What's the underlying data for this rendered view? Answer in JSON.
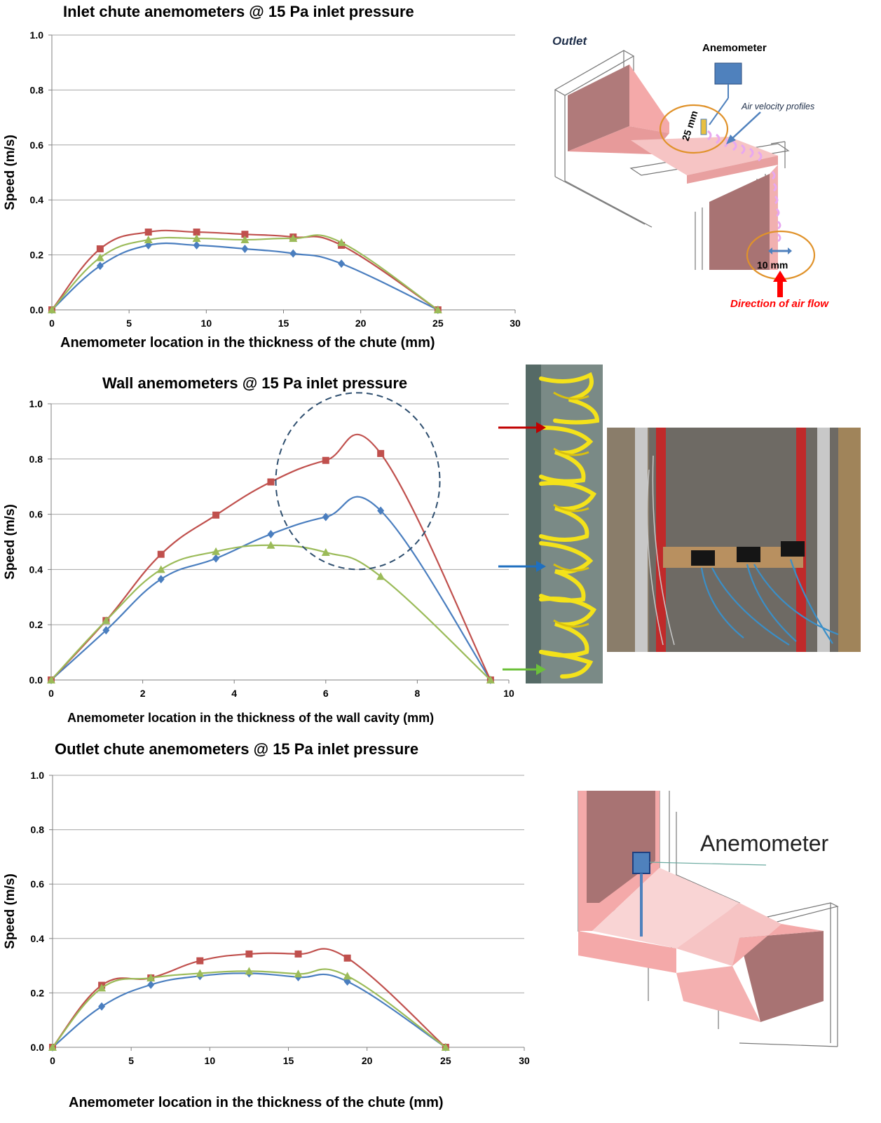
{
  "colors": {
    "blue": "#4a7ebf",
    "red": "#c0504d",
    "green": "#9bbb59",
    "grid": "#a6a6a6"
  },
  "charts": [
    {
      "title": "Inlet chute anemometers @ 15 Pa inlet pressure",
      "xlabel": "Anemometer location in the thickness of the chute (mm)",
      "ylabel": "Speed (m/s)"
    },
    {
      "title": "Wall anemometers @ 15 Pa inlet pressure",
      "xlabel": "Anemometer location in the thickness of the wall cavity (mm)",
      "ylabel": "Speed (m/s)"
    },
    {
      "title": "Outlet chute anemometers @ 15 Pa inlet pressure",
      "xlabel": "Anemometer location in the thickness of the chute (mm)",
      "ylabel": "Speed (m/s)"
    }
  ],
  "chart_data": [
    {
      "type": "line",
      "title": "Inlet chute anemometers @ 15 Pa inlet pressure",
      "xlabel": "Anemometer location in the thickness of the chute (mm)",
      "ylabel": "Speed (m/s)",
      "xlim": [
        0,
        30
      ],
      "ylim": [
        0,
        1.0
      ],
      "xticks": [
        "0",
        "5",
        "10",
        "15",
        "20",
        "25",
        "30"
      ],
      "yticks": [
        "0.0",
        "0.2",
        "0.4",
        "0.6",
        "0.8",
        "1.0"
      ],
      "grid": true,
      "legend": "none",
      "series": [
        {
          "color": "#4a7ebf",
          "marker": "diamond",
          "x": [
            0,
            3.125,
            6.25,
            9.375,
            12.5,
            15.625,
            18.75,
            25
          ],
          "y": [
            0,
            0.16,
            0.235,
            0.235,
            0.222,
            0.205,
            0.168,
            0
          ]
        },
        {
          "color": "#c0504d",
          "marker": "square",
          "x": [
            0,
            3.125,
            6.25,
            9.375,
            12.5,
            15.625,
            18.75,
            25
          ],
          "y": [
            0,
            0.222,
            0.283,
            0.283,
            0.275,
            0.265,
            0.235,
            0
          ]
        },
        {
          "color": "#9bbb59",
          "marker": "triangle",
          "x": [
            0,
            3.125,
            6.25,
            9.375,
            12.5,
            15.625,
            18.75,
            25
          ],
          "y": [
            0,
            0.19,
            0.255,
            0.26,
            0.255,
            0.26,
            0.245,
            0
          ]
        }
      ]
    },
    {
      "type": "line",
      "title": "Wall anemometers @ 15 Pa inlet pressure",
      "xlabel": "Anemometer location in the thickness of the wall cavity (mm)",
      "ylabel": "Speed (m/s)",
      "xlim": [
        0,
        10
      ],
      "ylim": [
        0,
        1.0
      ],
      "xticks": [
        "0",
        "2",
        "4",
        "6",
        "8",
        "10"
      ],
      "yticks": [
        "0.0",
        "0.2",
        "0.4",
        "0.6",
        "0.8",
        "1.0"
      ],
      "grid": true,
      "legend": "none",
      "series": [
        {
          "color": "#4a7ebf",
          "marker": "diamond",
          "x": [
            0,
            1.2,
            2.4,
            3.6,
            4.8,
            6.0,
            7.2,
            9.6
          ],
          "y": [
            0,
            0.18,
            0.365,
            0.44,
            0.528,
            0.59,
            0.613,
            0
          ]
        },
        {
          "color": "#c0504d",
          "marker": "square",
          "x": [
            0,
            1.2,
            2.4,
            3.6,
            4.8,
            6.0,
            7.2,
            9.6
          ],
          "y": [
            0,
            0.215,
            0.455,
            0.597,
            0.717,
            0.795,
            0.82,
            0
          ]
        },
        {
          "color": "#9bbb59",
          "marker": "triangle",
          "x": [
            0,
            1.2,
            2.4,
            3.6,
            4.8,
            6.0,
            7.2,
            9.6
          ],
          "y": [
            0,
            0.215,
            0.4,
            0.465,
            0.488,
            0.462,
            0.375,
            0
          ]
        }
      ]
    },
    {
      "type": "line",
      "title": "Outlet chute anemometers @ 15 Pa inlet pressure",
      "xlabel": "Anemometer location in the thickness of the chute (mm)",
      "ylabel": "Speed (m/s)",
      "xlim": [
        0,
        30
      ],
      "ylim": [
        0,
        1.0
      ],
      "xticks": [
        "0",
        "5",
        "10",
        "15",
        "20",
        "25",
        "30"
      ],
      "yticks": [
        "0.0",
        "0.2",
        "0.4",
        "0.6",
        "0.8",
        "1.0"
      ],
      "grid": true,
      "legend": "none",
      "series": [
        {
          "color": "#4a7ebf",
          "marker": "diamond",
          "x": [
            0,
            3.125,
            6.25,
            9.375,
            12.5,
            15.625,
            18.75,
            25
          ],
          "y": [
            0,
            0.15,
            0.23,
            0.262,
            0.272,
            0.258,
            0.242,
            0
          ]
        },
        {
          "color": "#c0504d",
          "marker": "square",
          "x": [
            0,
            3.125,
            6.25,
            9.375,
            12.5,
            15.625,
            18.75,
            25
          ],
          "y": [
            0,
            0.228,
            0.255,
            0.318,
            0.343,
            0.343,
            0.328,
            0
          ]
        },
        {
          "color": "#9bbb59",
          "marker": "triangle",
          "x": [
            0,
            3.125,
            6.25,
            9.375,
            12.5,
            15.625,
            18.75,
            25
          ],
          "y": [
            0,
            0.218,
            0.255,
            0.272,
            0.28,
            0.27,
            0.262,
            0
          ]
        }
      ]
    }
  ],
  "diagram_top": {
    "outlet_label": "Outlet",
    "anemometer_label": "Anemometer",
    "profiles_label": "Air velocity profiles",
    "dim_25": "25 mm",
    "dim_10": "10 mm",
    "flow_label": "Direction of air flow"
  },
  "diagram_bottom": {
    "anemometer_label": "Anemometer"
  }
}
